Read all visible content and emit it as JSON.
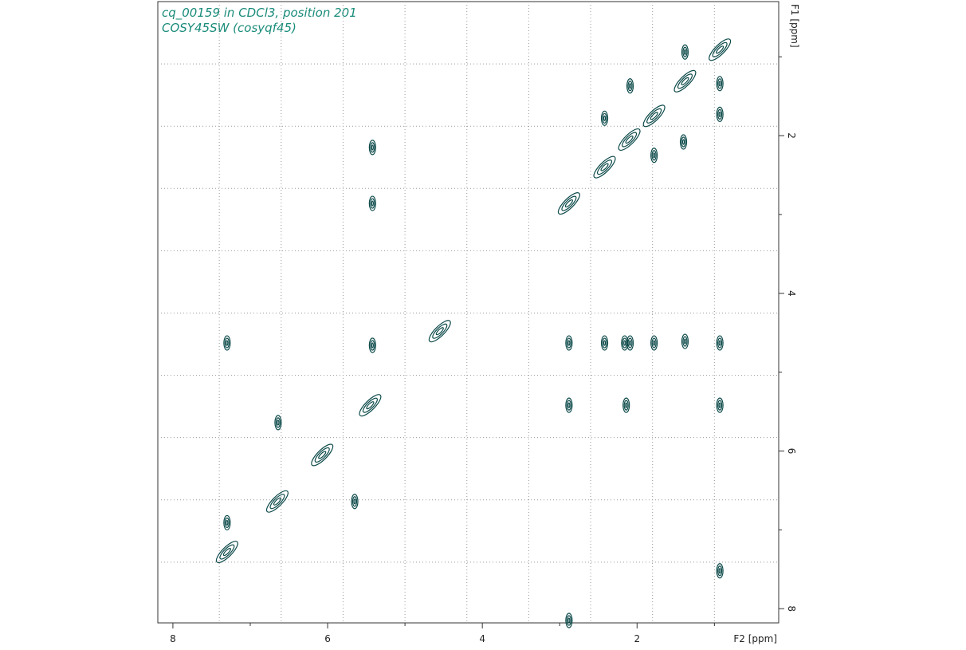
{
  "chart_data": {
    "type": "contour",
    "title": "cq_00159 in CDCl3, position 201",
    "subtitle": "COSY45SW (cosyqf45)",
    "xlabel": "F2 [ppm]",
    "ylabel": "F1 [ppm]",
    "x": [
      0.93,
      1.38,
      0.93,
      0.93,
      1.38,
      1.4,
      2.09,
      1.78,
      2.42,
      1.78,
      2.1,
      2.42,
      2.88,
      5.42,
      5.42,
      7.3,
      5.42,
      2.88,
      2.42,
      2.16,
      2.09,
      1.78,
      1.38,
      0.93,
      4.55,
      2.88,
      2.14,
      0.93,
      5.45,
      6.64,
      6.07,
      6.65,
      5.65,
      7.3,
      7.3,
      0.93,
      2.88
    ],
    "values": [
      0.91,
      0.94,
      1.34,
      1.73,
      1.31,
      2.08,
      1.37,
      1.75,
      1.78,
      2.25,
      2.05,
      2.4,
      2.86,
      2.15,
      2.86,
      4.63,
      4.66,
      4.63,
      4.63,
      4.63,
      4.63,
      4.63,
      4.61,
      4.63,
      4.48,
      5.42,
      5.42,
      5.42,
      5.42,
      5.64,
      6.05,
      6.64,
      6.64,
      6.91,
      7.28,
      7.52,
      8.15
    ],
    "color": "#0d4a4a",
    "xlim": [
      8.195,
      0.169
    ],
    "ylim": [
      0.3,
      8.18
    ],
    "xticks": [
      8,
      6,
      4,
      2
    ],
    "xminor": [
      7,
      5,
      3,
      1
    ],
    "yticks": [
      2,
      4,
      6,
      8
    ],
    "yminor": [
      1,
      3,
      5,
      7
    ],
    "xgrid": [
      7.4,
      6.6,
      5.8,
      5.0,
      4.2,
      3.4,
      2.6,
      1.8,
      1.0
    ],
    "ygrid": [
      1.09,
      1.88,
      2.67,
      3.46,
      4.25,
      5.04,
      5.83,
      6.62,
      7.41
    ],
    "grid": true
  }
}
